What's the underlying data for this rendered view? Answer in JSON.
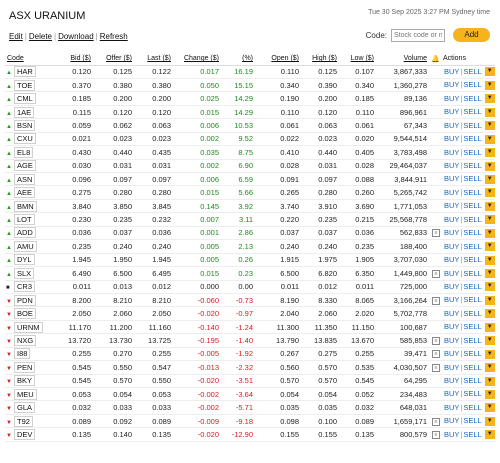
{
  "header": {
    "title": "ASX URANIUM",
    "timestamp": "Tue 30 Sep 2025 3:27 PM Sydney time"
  },
  "toolbar": {
    "edit": "Edit",
    "delete": "Delete",
    "download": "Download",
    "refresh": "Refresh",
    "code_label": "Code:",
    "code_placeholder": "Stock code or n",
    "add_label": "Add"
  },
  "columns": {
    "code": "Code",
    "bid": "Bid ($)",
    "offer": "Offer ($)",
    "last": "Last ($)",
    "change": "Change ($)",
    "pct": "(%)",
    "open": "Open ($)",
    "high": "High ($)",
    "low": "Low ($)",
    "volume": "Volume",
    "actions": "Actions"
  },
  "actions": {
    "buy": "BUY",
    "sell": "SELL",
    "chevron": "▼",
    "separator": "|"
  },
  "colors": {
    "up": "#1f9e1f",
    "down": "#d91a1a",
    "accent": "#f4b41a",
    "link": "#1565c0"
  },
  "rows": [
    {
      "code": "HAR",
      "dir": "up",
      "bid": "0.120",
      "offer": "0.125",
      "last": "0.122",
      "change": "0.017",
      "pct": "16.19",
      "open": "0.110",
      "high": "0.125",
      "low": "0.107",
      "volume": "3,867,333",
      "note": false
    },
    {
      "code": "TOE",
      "dir": "up",
      "bid": "0.370",
      "offer": "0.380",
      "last": "0.380",
      "change": "0.050",
      "pct": "15.15",
      "open": "0.340",
      "high": "0.390",
      "low": "0.340",
      "volume": "1,360,278",
      "note": false
    },
    {
      "code": "CML",
      "dir": "up",
      "bid": "0.185",
      "offer": "0.200",
      "last": "0.200",
      "change": "0.025",
      "pct": "14.29",
      "open": "0.190",
      "high": "0.200",
      "low": "0.185",
      "volume": "89,136",
      "note": false
    },
    {
      "code": "1AE",
      "dir": "up",
      "bid": "0.115",
      "offer": "0.120",
      "last": "0.120",
      "change": "0.015",
      "pct": "14.29",
      "open": "0.110",
      "high": "0.120",
      "low": "0.110",
      "volume": "896,961",
      "note": false
    },
    {
      "code": "BSN",
      "dir": "up",
      "bid": "0.059",
      "offer": "0.062",
      "last": "0.063",
      "change": "0.006",
      "pct": "10.53",
      "open": "0.061",
      "high": "0.063",
      "low": "0.061",
      "volume": "67,343",
      "note": false
    },
    {
      "code": "CXU",
      "dir": "up",
      "bid": "0.021",
      "offer": "0.023",
      "last": "0.023",
      "change": "0.002",
      "pct": "9.52",
      "open": "0.022",
      "high": "0.023",
      "low": "0.020",
      "volume": "9,544,514",
      "note": false
    },
    {
      "code": "EL8",
      "dir": "up",
      "bid": "0.430",
      "offer": "0.440",
      "last": "0.435",
      "change": "0.035",
      "pct": "8.75",
      "open": "0.410",
      "high": "0.440",
      "low": "0.405",
      "volume": "3,783,498",
      "note": false
    },
    {
      "code": "AGE",
      "dir": "up",
      "bid": "0.030",
      "offer": "0.031",
      "last": "0.031",
      "change": "0.002",
      "pct": "6.90",
      "open": "0.028",
      "high": "0.031",
      "low": "0.028",
      "volume": "29,464,037",
      "note": false
    },
    {
      "code": "ASN",
      "dir": "up",
      "bid": "0.096",
      "offer": "0.097",
      "last": "0.097",
      "change": "0.006",
      "pct": "6.59",
      "open": "0.091",
      "high": "0.097",
      "low": "0.088",
      "volume": "3,844,911",
      "note": false
    },
    {
      "code": "AEE",
      "dir": "up",
      "bid": "0.275",
      "offer": "0.280",
      "last": "0.280",
      "change": "0.015",
      "pct": "5.66",
      "open": "0.265",
      "high": "0.280",
      "low": "0.260",
      "volume": "5,265,742",
      "note": false
    },
    {
      "code": "BMN",
      "dir": "up",
      "bid": "3.840",
      "offer": "3.850",
      "last": "3.845",
      "change": "0.145",
      "pct": "3.92",
      "open": "3.740",
      "high": "3.910",
      "low": "3.690",
      "volume": "1,771,053",
      "note": false
    },
    {
      "code": "LOT",
      "dir": "up",
      "bid": "0.230",
      "offer": "0.235",
      "last": "0.232",
      "change": "0.007",
      "pct": "3.11",
      "open": "0.220",
      "high": "0.235",
      "low": "0.215",
      "volume": "25,568,778",
      "note": false
    },
    {
      "code": "ADD",
      "dir": "up",
      "bid": "0.036",
      "offer": "0.037",
      "last": "0.036",
      "change": "0.001",
      "pct": "2.86",
      "open": "0.037",
      "high": "0.037",
      "low": "0.036",
      "volume": "562,833",
      "note": true
    },
    {
      "code": "AMU",
      "dir": "up",
      "bid": "0.235",
      "offer": "0.240",
      "last": "0.240",
      "change": "0.005",
      "pct": "2.13",
      "open": "0.240",
      "high": "0.240",
      "low": "0.235",
      "volume": "188,400",
      "note": false
    },
    {
      "code": "DYL",
      "dir": "up",
      "bid": "1.945",
      "offer": "1.950",
      "last": "1.945",
      "change": "0.005",
      "pct": "0.26",
      "open": "1.915",
      "high": "1.975",
      "low": "1.905",
      "volume": "3,707,030",
      "note": false
    },
    {
      "code": "SLX",
      "dir": "up",
      "bid": "6.490",
      "offer": "6.500",
      "last": "6.495",
      "change": "0.015",
      "pct": "0.23",
      "open": "6.500",
      "high": "6.820",
      "low": "6.350",
      "volume": "1,449,800",
      "note": true
    },
    {
      "code": "CR3",
      "dir": "flat",
      "bid": "0.011",
      "offer": "0.013",
      "last": "0.012",
      "change": "0.000",
      "pct": "0.00",
      "open": "0.011",
      "high": "0.012",
      "low": "0.011",
      "volume": "725,000",
      "note": false
    },
    {
      "code": "PDN",
      "dir": "down",
      "bid": "8.200",
      "offer": "8.210",
      "last": "8.210",
      "change": "-0.060",
      "pct": "-0.73",
      "open": "8.190",
      "high": "8.330",
      "low": "8.065",
      "volume": "3,166,264",
      "note": true
    },
    {
      "code": "BOE",
      "dir": "down",
      "bid": "2.050",
      "offer": "2.060",
      "last": "2.050",
      "change": "-0.020",
      "pct": "-0.97",
      "open": "2.040",
      "high": "2.060",
      "low": "2.020",
      "volume": "5,702,778",
      "note": false
    },
    {
      "code": "URNM",
      "dir": "down",
      "bid": "11.170",
      "offer": "11.200",
      "last": "11.160",
      "change": "-0.140",
      "pct": "-1.24",
      "open": "11.300",
      "high": "11.350",
      "low": "11.150",
      "volume": "100,687",
      "note": false
    },
    {
      "code": "NXG",
      "dir": "down",
      "bid": "13.720",
      "offer": "13.730",
      "last": "13.725",
      "change": "-0.195",
      "pct": "-1.40",
      "open": "13.790",
      "high": "13.835",
      "low": "13.670",
      "volume": "585,853",
      "note": true
    },
    {
      "code": "I88",
      "dir": "down",
      "bid": "0.255",
      "offer": "0.270",
      "last": "0.255",
      "change": "-0.005",
      "pct": "-1.92",
      "open": "0.267",
      "high": "0.275",
      "low": "0.255",
      "volume": "39,471",
      "note": true
    },
    {
      "code": "PEN",
      "dir": "down",
      "bid": "0.545",
      "offer": "0.550",
      "last": "0.547",
      "change": "-0.013",
      "pct": "-2.32",
      "open": "0.560",
      "high": "0.570",
      "low": "0.535",
      "volume": "4,030,507",
      "note": true
    },
    {
      "code": "BKY",
      "dir": "down",
      "bid": "0.545",
      "offer": "0.570",
      "last": "0.550",
      "change": "-0.020",
      "pct": "-3.51",
      "open": "0.570",
      "high": "0.570",
      "low": "0.545",
      "volume": "64,295",
      "note": false
    },
    {
      "code": "MEU",
      "dir": "down",
      "bid": "0.053",
      "offer": "0.054",
      "last": "0.053",
      "change": "-0.002",
      "pct": "-3.64",
      "open": "0.054",
      "high": "0.054",
      "low": "0.052",
      "volume": "234,483",
      "note": false
    },
    {
      "code": "GLA",
      "dir": "down",
      "bid": "0.032",
      "offer": "0.033",
      "last": "0.033",
      "change": "-0.002",
      "pct": "-5.71",
      "open": "0.035",
      "high": "0.035",
      "low": "0.032",
      "volume": "648,031",
      "note": false
    },
    {
      "code": "T92",
      "dir": "down",
      "bid": "0.089",
      "offer": "0.092",
      "last": "0.089",
      "change": "-0.009",
      "pct": "-9.18",
      "open": "0.098",
      "high": "0.100",
      "low": "0.089",
      "volume": "1,659,171",
      "note": true
    },
    {
      "code": "DEV",
      "dir": "down",
      "bid": "0.135",
      "offer": "0.140",
      "last": "0.135",
      "change": "-0.020",
      "pct": "-12.90",
      "open": "0.155",
      "high": "0.155",
      "low": "0.135",
      "volume": "800,579",
      "note": true
    }
  ]
}
